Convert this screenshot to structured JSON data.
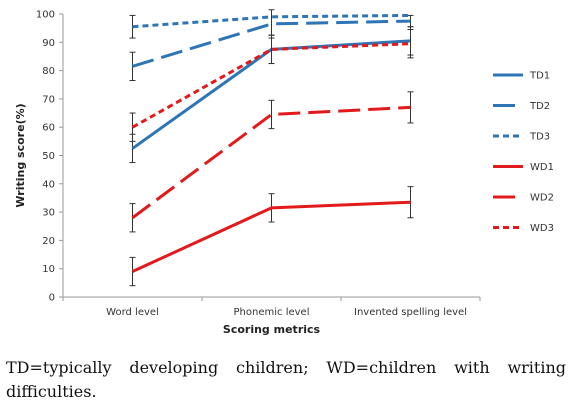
{
  "chart_data": {
    "type": "line",
    "categories": [
      "Word level",
      "Phonemic level",
      "Invented spelling level"
    ],
    "xlabel": "Scoring metrics",
    "ylabel": "Writing score(%)",
    "ylim": [
      0,
      100
    ],
    "yticks": [
      0,
      10,
      20,
      30,
      40,
      50,
      60,
      70,
      80,
      90,
      100
    ],
    "grid": false,
    "legend": "right",
    "series": [
      {
        "name": "TD1",
        "values": [
          52.5,
          87.5,
          90.5
        ],
        "error": [
          5,
          5,
          5
        ],
        "color": "#2e75b6",
        "dash": "solid"
      },
      {
        "name": "TD2",
        "values": [
          81.5,
          96.5,
          97.5
        ],
        "error": [
          5,
          5,
          2
        ],
        "color": "#2e75b6",
        "dash": "long"
      },
      {
        "name": "TD3",
        "values": [
          95.5,
          99.0,
          99.5
        ],
        "error": [
          4,
          0,
          0
        ],
        "color": "#2e75b6",
        "dash": "short"
      },
      {
        "name": "WD1",
        "values": [
          9.0,
          31.5,
          33.5
        ],
        "error": [
          5,
          5,
          5.5
        ],
        "color": "#e31a1c",
        "dash": "solid"
      },
      {
        "name": "WD2",
        "values": [
          28.0,
          64.5,
          67.0
        ],
        "error": [
          5,
          5,
          5.5
        ],
        "color": "#e31a1c",
        "dash": "long"
      },
      {
        "name": "WD3",
        "values": [
          60.0,
          87.5,
          89.5
        ],
        "error": [
          5,
          5,
          5
        ],
        "color": "#e31a1c",
        "dash": "short"
      }
    ]
  },
  "caption": "TD=typically developing children; WD=children with writing difficulties."
}
